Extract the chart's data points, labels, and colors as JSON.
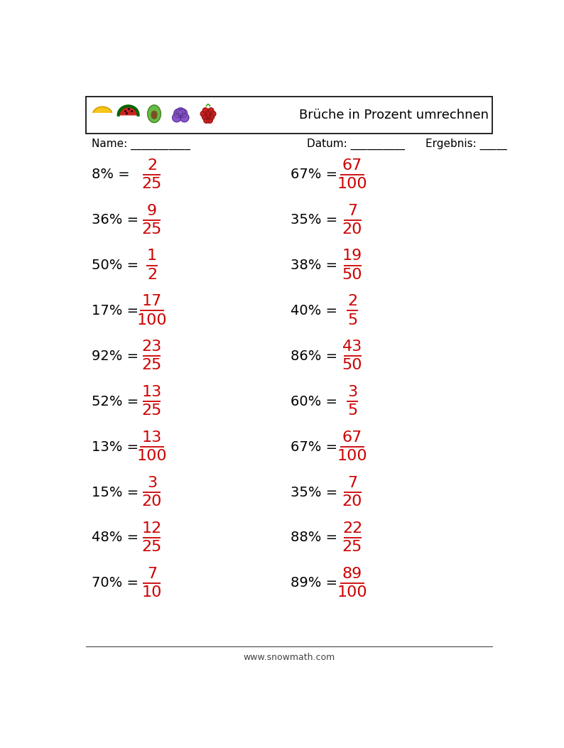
{
  "title": "Brüche in Prozent umrechnen",
  "name_label": "Name: ___________",
  "datum_label": "Datum: __________",
  "ergebnis_label": "Ergebnis: _____",
  "footer": "www.snowmath.com",
  "left_problems": [
    {
      "percent": "8%",
      "numerator": "2",
      "denominator": "25"
    },
    {
      "percent": "36%",
      "numerator": "9",
      "denominator": "25"
    },
    {
      "percent": "50%",
      "numerator": "1",
      "denominator": "2"
    },
    {
      "percent": "17%",
      "numerator": "17",
      "denominator": "100"
    },
    {
      "percent": "92%",
      "numerator": "23",
      "denominator": "25"
    },
    {
      "percent": "52%",
      "numerator": "13",
      "denominator": "25"
    },
    {
      "percent": "13%",
      "numerator": "13",
      "denominator": "100"
    },
    {
      "percent": "15%",
      "numerator": "3",
      "denominator": "20"
    },
    {
      "percent": "48%",
      "numerator": "12",
      "denominator": "25"
    },
    {
      "percent": "70%",
      "numerator": "7",
      "denominator": "10"
    }
  ],
  "right_problems": [
    {
      "percent": "67%",
      "numerator": "67",
      "denominator": "100"
    },
    {
      "percent": "35%",
      "numerator": "7",
      "denominator": "20"
    },
    {
      "percent": "38%",
      "numerator": "19",
      "denominator": "50"
    },
    {
      "percent": "40%",
      "numerator": "2",
      "denominator": "5"
    },
    {
      "percent": "86%",
      "numerator": "43",
      "denominator": "50"
    },
    {
      "percent": "60%",
      "numerator": "3",
      "denominator": "5"
    },
    {
      "percent": "67%",
      "numerator": "67",
      "denominator": "100"
    },
    {
      "percent": "35%",
      "numerator": "7",
      "denominator": "20"
    },
    {
      "percent": "88%",
      "numerator": "22",
      "denominator": "25"
    },
    {
      "percent": "89%",
      "numerator": "89",
      "denominator": "100"
    }
  ],
  "fraction_color": "#cc0000",
  "text_color": "#000000",
  "background_color": "#ffffff",
  "header_box_color": "#000000",
  "fruit_colors": [
    [
      "#f5c518",
      "#cc8800"
    ],
    [
      "#cc2222",
      "#880000"
    ],
    [
      "#66bb44",
      "#447722"
    ],
    [
      "#8855cc",
      "#553388"
    ],
    [
      "#cc2222",
      "#881111"
    ]
  ]
}
